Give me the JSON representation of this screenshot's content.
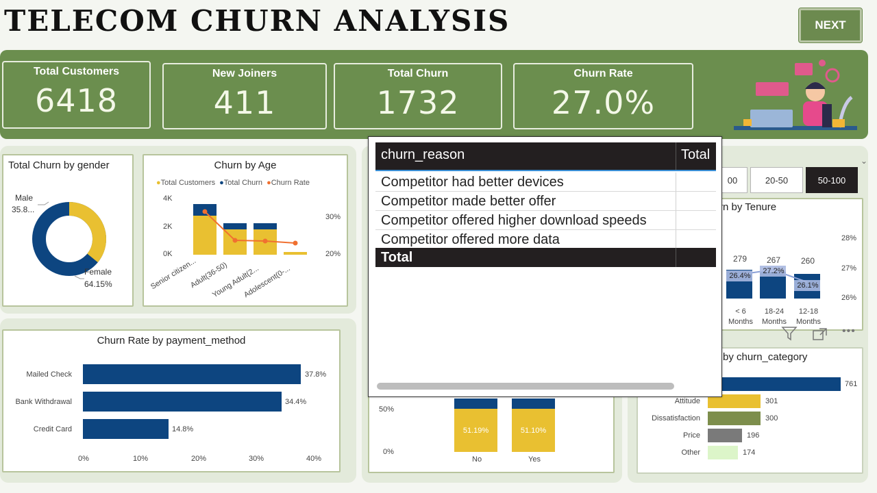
{
  "header": {
    "title": "TELECOM CHURN ANALYSIS",
    "next_label": "NEXT"
  },
  "kpis": [
    {
      "label": "Total Customers",
      "value": "6418"
    },
    {
      "label": "New Joiners",
      "value": "411"
    },
    {
      "label": "Total Churn",
      "value": "1732"
    },
    {
      "label": "Churn Rate",
      "value": "27.0%"
    }
  ],
  "gender": {
    "title": "Total Churn by gender",
    "male_label": "Male",
    "male_value": "35.8...",
    "female_label": "Female",
    "female_value": "64.15%",
    "colors": {
      "male": "#e9c031",
      "female": "#0d4580"
    }
  },
  "age": {
    "title": "Churn by Age",
    "legend": [
      "Total Customers",
      "Total Churn",
      "Churn Rate"
    ],
    "yticks": [
      "4K",
      "2K",
      "0K"
    ],
    "y2ticks": [
      "30%",
      "20%"
    ],
    "categories": [
      "Senior citizen...",
      "Adult(36-50)",
      "Young Adult(2...",
      "Adolescent(0-..."
    ]
  },
  "payment": {
    "title": "Churn Rate by payment_method",
    "categories": [
      "Mailed Check",
      "Bank Withdrawal",
      "Credit Card"
    ],
    "labels": [
      "37.8%",
      "34.4%",
      "14.8%"
    ],
    "xticks": [
      "0%",
      "10%",
      "20%",
      "30%",
      "40%"
    ]
  },
  "tenure": {
    "title": "rn by Tenure",
    "slicer": [
      "00",
      "20-50",
      "50-100"
    ],
    "counts": [
      "279",
      "267",
      "260"
    ],
    "rates": [
      "26.4%",
      "27.2%",
      "26.1%"
    ],
    "categories": [
      [
        "< 6",
        "Months"
      ],
      [
        "18-24",
        "Months"
      ],
      [
        "12-18",
        "Months"
      ]
    ],
    "y2ticks": [
      "28%",
      "27%",
      "26%"
    ]
  },
  "category": {
    "title": "by churn_category",
    "categories": [
      "",
      "Attitude",
      "Dissatisfaction",
      "Price",
      "Other"
    ],
    "labels": [
      "761",
      "301",
      "300",
      "196",
      "174"
    ]
  },
  "center_bottom": {
    "yticks": [
      "50%",
      "0%"
    ],
    "categories": [
      "No",
      "Yes"
    ],
    "labels": [
      "51.19%",
      "51.10%"
    ]
  },
  "table": {
    "headers": [
      "churn_reason",
      "Total"
    ],
    "rows": [
      "Competitor had better devices",
      "Competitor made better offer",
      "Competitor offered higher download speeds",
      "Competitor offered more data"
    ],
    "total_label": "Total"
  },
  "chart_data": [
    {
      "type": "pie",
      "title": "Total Churn by gender",
      "categories": [
        "Male",
        "Female"
      ],
      "values": [
        35.85,
        64.15
      ]
    },
    {
      "type": "bar",
      "title": "Churn by Age",
      "categories": [
        "Senior citizen...",
        "Adult(36-50)",
        "Young Adult(2...",
        "Adolescent(0-..."
      ],
      "series": [
        {
          "name": "Total Customers",
          "values": [
            2600,
            1700,
            1700,
            200
          ]
        },
        {
          "name": "Total Churn",
          "values": [
            900,
            450,
            450,
            50
          ]
        },
        {
          "name": "Churn Rate",
          "values": [
            33,
            23,
            23,
            22
          ]
        }
      ],
      "ylim": [
        0,
        4000
      ]
    },
    {
      "type": "bar",
      "title": "Churn Rate by payment_method",
      "categories": [
        "Mailed Check",
        "Bank Withdrawal",
        "Credit Card"
      ],
      "values": [
        37.8,
        34.4,
        14.8
      ],
      "xlim": [
        0,
        40
      ]
    },
    {
      "type": "bar",
      "categories": [
        "< 6 Months",
        "18-24 Months",
        "12-18 Months"
      ],
      "series": [
        {
          "values": [
            279,
            267,
            260
          ]
        },
        {
          "values": [
            26.4,
            27.2,
            26.1
          ]
        }
      ]
    },
    {
      "type": "bar",
      "title": "by churn_category",
      "categories": [
        "",
        "Attitude",
        "Dissatisfaction",
        "Price",
        "Other"
      ],
      "values": [
        761,
        301,
        300,
        196,
        174
      ],
      "colors": [
        "#0d4580",
        "#e9c031",
        "#7d8e4c",
        "#7a7a7a",
        "#dcf5c9"
      ]
    },
    {
      "type": "bar",
      "categories": [
        "No",
        "Yes"
      ],
      "values": [
        51.19,
        51.1
      ]
    }
  ]
}
